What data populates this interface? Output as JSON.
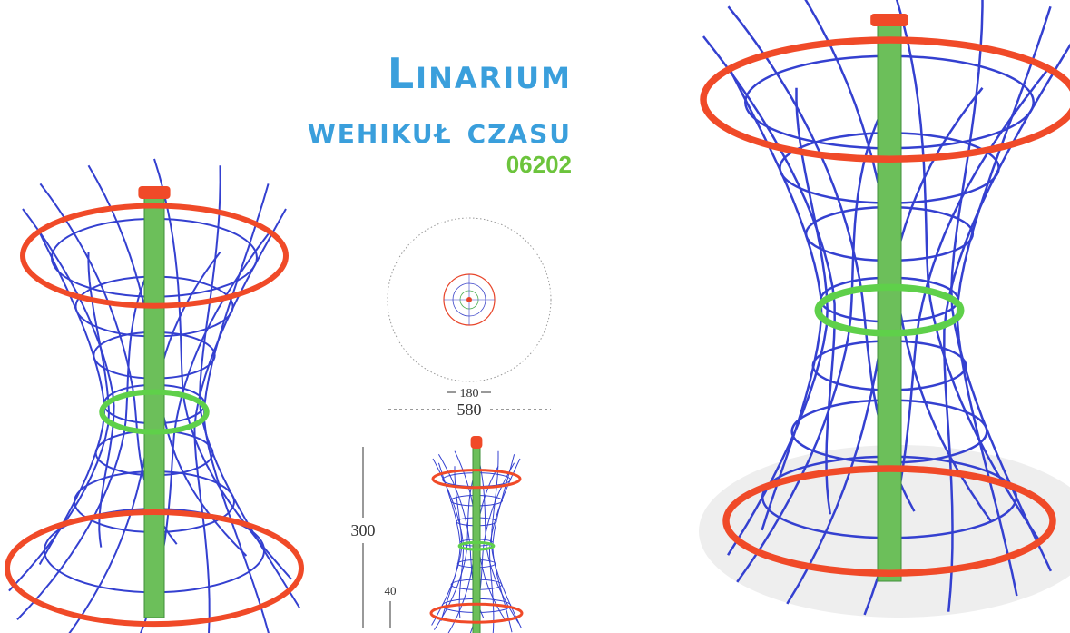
{
  "header": {
    "title": "Linarium",
    "subtitle": "wehikuł czasu",
    "code": "06202"
  },
  "dimensions": {
    "inner_diameter": 180,
    "outer_diameter": 580,
    "height": 300,
    "ground_depth": 40
  }
}
